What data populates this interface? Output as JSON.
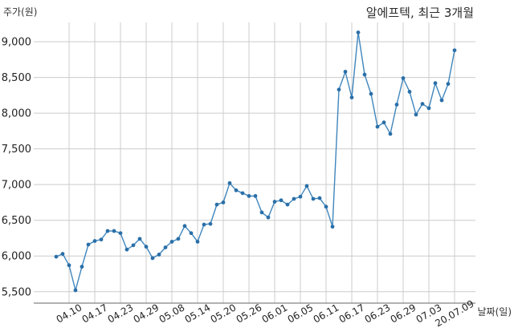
{
  "chart_data": {
    "type": "line",
    "title": "알에프텍, 최근 3개월",
    "ylabel": "주가(원)",
    "xlabel": "날짜(일)",
    "x": [
      "04.08",
      "04.09",
      "04.10",
      "04.13",
      "04.14",
      "04.16",
      "04.17",
      "04.20",
      "04.21",
      "04.22",
      "04.23",
      "04.24",
      "04.27",
      "04.28",
      "04.29",
      "05.04",
      "05.06",
      "05.07",
      "05.08",
      "05.11",
      "05.12",
      "05.13",
      "05.14",
      "05.15",
      "05.18",
      "05.19",
      "05.20",
      "05.21",
      "05.22",
      "05.25",
      "05.26",
      "05.27",
      "05.28",
      "05.29",
      "06.01",
      "06.02",
      "06.03",
      "06.04",
      "06.05",
      "06.08",
      "06.09",
      "06.10",
      "06.11",
      "06.12",
      "06.15",
      "06.16",
      "06.17",
      "06.18",
      "06.19",
      "06.22",
      "06.23",
      "06.24",
      "06.25",
      "06.26",
      "06.29",
      "06.30",
      "07.01",
      "07.02",
      "07.03",
      "07.06",
      "07.07",
      "07.08",
      "07.09"
    ],
    "series": [
      {
        "values": [
          5990,
          6030,
          5870,
          5520,
          5850,
          6160,
          6210,
          6230,
          6350,
          6350,
          6320,
          6090,
          6150,
          6240,
          6130,
          5970,
          6020,
          6120,
          6200,
          6240,
          6420,
          6320,
          6200,
          6440,
          6450,
          6720,
          6750,
          7020,
          6920,
          6880,
          6840,
          6840,
          6610,
          6540,
          6760,
          6780,
          6720,
          6800,
          6830,
          6980,
          6800,
          6810,
          6690,
          6410,
          8330,
          8580,
          8220,
          9130,
          8540,
          8270,
          7810,
          7870,
          7710,
          8120,
          8490,
          8300,
          7980,
          8130,
          8070,
          8420,
          8180,
          8410,
          8880
        ]
      }
    ],
    "yticks": [
      {
        "value": 5500,
        "label": "5,500"
      },
      {
        "value": 6000,
        "label": "6,000"
      },
      {
        "value": 6500,
        "label": "6,500"
      },
      {
        "value": 7000,
        "label": "7,000"
      },
      {
        "value": 7500,
        "label": "7,500"
      },
      {
        "value": 8000,
        "label": "8,000"
      },
      {
        "value": 8500,
        "label": "8,500"
      },
      {
        "value": 9000,
        "label": "9,000"
      }
    ],
    "xticks": [
      "04.10",
      "04.17",
      "04.23",
      "04.29",
      "05.08",
      "05.14",
      "05.20",
      "05.26",
      "06.01",
      "06.05",
      "06.11",
      "06.17",
      "06.23",
      "06.29",
      "07.03",
      "20.07.09"
    ],
    "ylim": [
      5340,
      9270
    ],
    "grid": true,
    "colors": {
      "line": "#3f86bd",
      "marker": "#2a6fa8",
      "grid": "#cccccc",
      "axis": "#666666"
    }
  }
}
